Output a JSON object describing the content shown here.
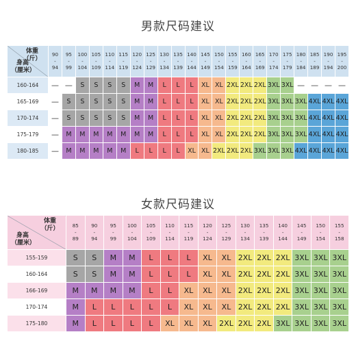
{
  "men": {
    "title": "男款尺码建议",
    "weight_label": "体重（斤）",
    "height_label": "身高（厘米）",
    "header_color": "#cfe1f0",
    "weights": [
      [
        "90",
        "94"
      ],
      [
        "95",
        "99"
      ],
      [
        "100",
        "104"
      ],
      [
        "105",
        "109"
      ],
      [
        "110",
        "114"
      ],
      [
        "115",
        "119"
      ],
      [
        "120",
        "124"
      ],
      [
        "125",
        "129"
      ],
      [
        "130",
        "134"
      ],
      [
        "135",
        "139"
      ],
      [
        "140",
        "144"
      ],
      [
        "145",
        "149"
      ],
      [
        "150",
        "154"
      ],
      [
        "155",
        "159"
      ],
      [
        "160",
        "164"
      ],
      [
        "165",
        "169"
      ],
      [
        "170",
        "174"
      ],
      [
        "175",
        "179"
      ],
      [
        "180",
        "184"
      ],
      [
        "185",
        "189"
      ],
      [
        "190",
        "194"
      ],
      [
        "195",
        "200"
      ]
    ],
    "rows": [
      {
        "height": "160-164",
        "cells": [
          "—",
          "—",
          "S",
          "S",
          "S",
          "S",
          "M",
          "M",
          "L",
          "L",
          "L",
          "XL",
          "XL",
          "2XL",
          "2XL",
          "2XL",
          "3XL",
          "3XL",
          "—",
          "—",
          "—",
          "—"
        ]
      },
      {
        "height": "165-169",
        "cells": [
          "—",
          "S",
          "S",
          "S",
          "S",
          "S",
          "M",
          "M",
          "L",
          "L",
          "L",
          "XL",
          "XL",
          "2XL",
          "2XL",
          "2XL",
          "3XL",
          "3XL",
          "3XL",
          "4XL",
          "4XL",
          "4XL"
        ]
      },
      {
        "height": "170-174",
        "cells": [
          "—",
          "S",
          "S",
          "S",
          "S",
          "S",
          "M",
          "M",
          "L",
          "L",
          "L",
          "XL",
          "XL",
          "2XL",
          "2XL",
          "2XL",
          "3XL",
          "3XL",
          "3XL",
          "4XL",
          "4XL",
          "4XL"
        ]
      },
      {
        "height": "175-179",
        "cells": [
          "—",
          "M",
          "M",
          "M",
          "M",
          "M",
          "M",
          "M",
          "L",
          "L",
          "L",
          "XL",
          "XL",
          "2XL",
          "2XL",
          "2XL",
          "3XL",
          "3XL",
          "3XL",
          "4XL",
          "4XL",
          "4XL"
        ]
      },
      {
        "height": "180-185",
        "cells": [
          "—",
          "M",
          "M",
          "M",
          "M",
          "M",
          "L",
          "L",
          "L",
          "L",
          "XL",
          "XL",
          "2XL",
          "2XL",
          "2XL",
          "3XL",
          "3XL",
          "3XL",
          "4XL",
          "4XL",
          "4XL",
          "4XL"
        ]
      }
    ]
  },
  "women": {
    "title": "女款尺码建议",
    "weight_label": "体重（斤）",
    "height_label": "身高（厘米）",
    "header_color": "#f6cfdf",
    "weights": [
      [
        "85",
        "89"
      ],
      [
        "90",
        "94"
      ],
      [
        "95",
        "99"
      ],
      [
        "100",
        "104"
      ],
      [
        "105",
        "109"
      ],
      [
        "110",
        "114"
      ],
      [
        "115",
        "119"
      ],
      [
        "120",
        "124"
      ],
      [
        "125",
        "129"
      ],
      [
        "130",
        "134"
      ],
      [
        "135",
        "139"
      ],
      [
        "140",
        "144"
      ],
      [
        "145",
        "149"
      ],
      [
        "150",
        "154"
      ],
      [
        "155",
        "158"
      ]
    ],
    "rows": [
      {
        "height": "155-159",
        "cells": [
          "S",
          "S",
          "M",
          "M",
          "L",
          "L",
          "L",
          "XL",
          "XL",
          "2XL",
          "2XL",
          "2XL",
          "3XL",
          "3XL",
          "3XL"
        ]
      },
      {
        "height": "160-164",
        "cells": [
          "S",
          "S",
          "M",
          "M",
          "L",
          "L",
          "L",
          "XL",
          "XL",
          "2XL",
          "2XL",
          "2XL",
          "3XL",
          "3XL",
          "3XL"
        ]
      },
      {
        "height": "166-169",
        "cells": [
          "M",
          "M",
          "M",
          "M",
          "L",
          "L",
          "XL",
          "XL",
          "XL",
          "2XL",
          "2XL",
          "2XL",
          "3XL",
          "3XL",
          "3XL"
        ]
      },
      {
        "height": "170-174",
        "cells": [
          "M",
          "L",
          "L",
          "L",
          "L",
          "L",
          "XL",
          "XL",
          "XL",
          "2XL",
          "2XL",
          "2XL",
          "3XL",
          "3XL",
          "3XL"
        ]
      },
      {
        "height": "175-180",
        "cells": [
          "M",
          "L",
          "L",
          "L",
          "L",
          "XL",
          "XL",
          "XL",
          "2XL",
          "2XL",
          "2XL",
          "3XL",
          "3XL",
          "3XL",
          "3XL"
        ]
      }
    ]
  },
  "size_colors": {
    "S": "#a6a6a6",
    "M": "#b57fc6",
    "L": "#ef7a80",
    "XL": "#f6b98e",
    "2XL": "#f2ea7e",
    "3XL": "#a8d08e",
    "4XL": "#5aa5d8",
    "—": "#ffffff"
  },
  "row_label_colors": {
    "men": [
      "#dce9f5",
      "#ffffff",
      "#dce9f5",
      "#ffffff",
      "#dce9f5"
    ],
    "women": [
      "#fbe0ea",
      "#ffffff",
      "#fbe0ea",
      "#ffffff",
      "#fbe0ea"
    ]
  }
}
